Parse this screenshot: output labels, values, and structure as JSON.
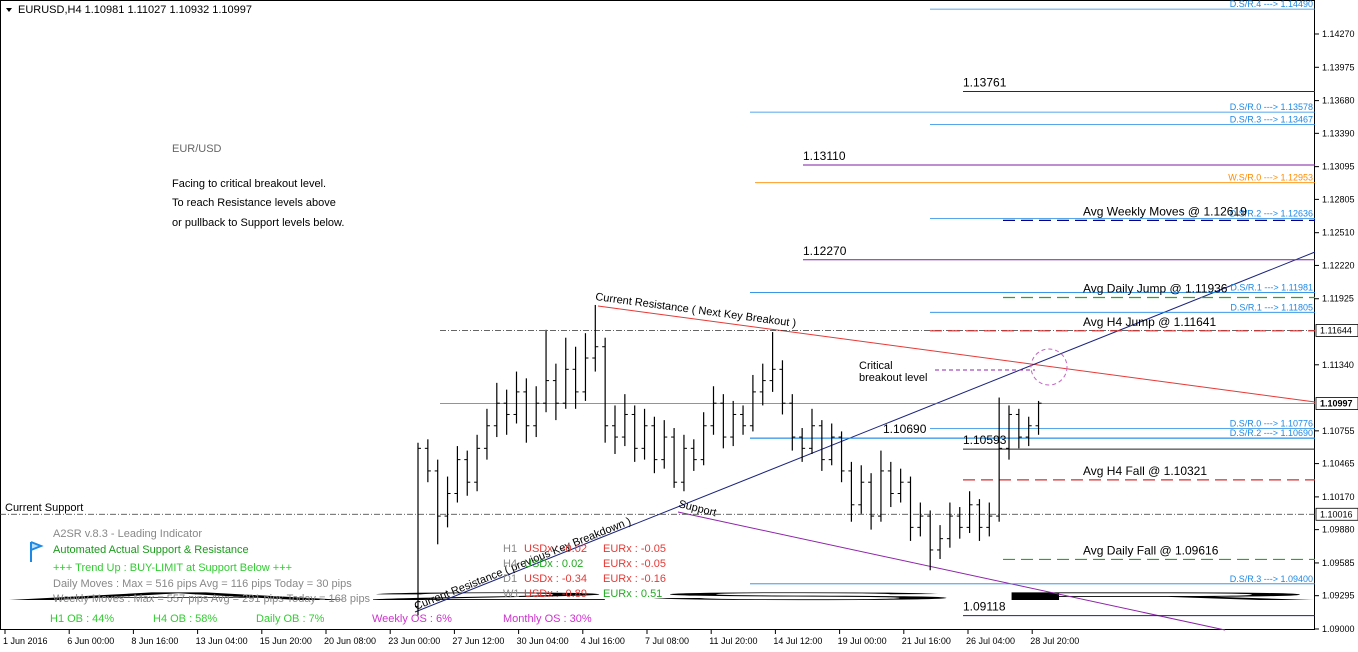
{
  "header": "EURUSD,H4  1.10981 1.11027 1.10932 1.10997",
  "watermark": "A2SR",
  "headline": {
    "symbol": "EUR/USD",
    "title": "Facing to critical breakout level.",
    "lines": [
      "To reach Resistance levels above",
      "or pullback to Support levels below."
    ]
  },
  "price_range": [
    1.08991,
    1.14571
  ],
  "price_ticks": [
    {
      "value": 1.1427,
      "label": "1.14270"
    },
    {
      "value": 1.13975,
      "label": "1.13975"
    },
    {
      "value": 1.1368,
      "label": "1.13680"
    },
    {
      "value": 1.1339,
      "label": "1.13390"
    },
    {
      "value": 1.13095,
      "label": "1.13095"
    },
    {
      "value": 1.12805,
      "label": "1.12805"
    },
    {
      "value": 1.1251,
      "label": "1.12510"
    },
    {
      "value": 1.1222,
      "label": "1.12220"
    },
    {
      "value": 1.11925,
      "label": "1.11925"
    },
    {
      "value": 1.1134,
      "label": "1.11340"
    },
    {
      "value": 1.10755,
      "label": "1.10755"
    },
    {
      "value": 1.10465,
      "label": "1.10465"
    },
    {
      "value": 1.1017,
      "label": "1.10170"
    },
    {
      "value": 1.0988,
      "label": "1.09880"
    },
    {
      "value": 1.09585,
      "label": "1.09585"
    },
    {
      "value": 1.09295,
      "label": "1.09295"
    },
    {
      "value": 1.09,
      "label": "1.09000"
    }
  ],
  "price_boxes": [
    {
      "value": 1.11644,
      "label": "1.11644"
    },
    {
      "value": 1.10997,
      "label": "1.10997"
    },
    {
      "value": 1.10016,
      "label": "1.10016"
    }
  ],
  "time_labels": [
    "1 Jun 2016",
    "6 Jun 00:00",
    "8 Jun 16:00",
    "13 Jun 04:00",
    "15 Jun 20:00",
    "20 Jun 08:00",
    "23 Jun 00:00",
    "27 Jun 12:00",
    "30 Jun 04:00",
    "4 Jul 16:00",
    "7 Jul 08:00",
    "11 Jul 20:00",
    "14 Jul 12:00",
    "19 Jul 00:00",
    "21 Jul 16:00",
    "26 Jul 04:00",
    "28 Jul 20:00"
  ],
  "sr_levels": [
    {
      "label": "D.S/R.4 ---> 1.14490",
      "value": 1.1449,
      "color": "#1e88e5"
    },
    {
      "label": "D.S/R.0 ---> 1.13578",
      "value": 1.13578,
      "color": "#1e88e5"
    },
    {
      "label": "D.S/R.3 ---> 1.13467",
      "value": 1.13467,
      "color": "#1e88e5"
    },
    {
      "label": "W.S/R.0 ---> 1.12953",
      "value": 1.12953,
      "color": "#ff8c00"
    },
    {
      "label": "D.S/R.2 ---> 1.12636",
      "value": 1.12636,
      "color": "#1e88e5"
    },
    {
      "label": "D.S/R.1 ---> 1.11981",
      "value": 1.11981,
      "color": "#1e88e5"
    },
    {
      "label": "D.S/R.1 ---> 1.11805",
      "value": 1.11805,
      "color": "#1e88e5"
    },
    {
      "label": "D.S/R.0 ---> 1.10776",
      "value": 1.10776,
      "color": "#1e88e5"
    },
    {
      "label": "D.S/R.2 ---> 1.10690",
      "value": 1.1069,
      "color": "#1e88e5"
    },
    {
      "label": "D.S/R.3 ---> 1.09400",
      "value": 1.094,
      "color": "#1e88e5"
    }
  ],
  "key_levels": [
    {
      "label": "1.13761",
      "value": 1.13761,
      "color": "#1a237e"
    },
    {
      "label": "1.13110",
      "value": 1.1311,
      "color": "#7b1fa2"
    },
    {
      "label": "1.12270",
      "value": 1.1227,
      "color": "#7b1fa2"
    },
    {
      "label": "1.10690",
      "value": 1.1069,
      "color": "#1e88e5"
    },
    {
      "label": "1.10593",
      "value": 1.10593,
      "color": "#222222"
    },
    {
      "label": "1.09118",
      "value": 1.09118,
      "color": "#1a237e"
    }
  ],
  "avg_levels": [
    {
      "label": "Avg Weekly Moves @ 1.12619",
      "value": 1.12619,
      "color": "#00008b"
    },
    {
      "label": "Avg Daily Jump @ 1.11936",
      "value": 1.11936,
      "color": "#22aa22"
    },
    {
      "label": "Avg H4 Jump @ 1.11641",
      "value": 1.11641,
      "color": "#d32f2f"
    },
    {
      "label": "Avg H4 Fall @ 1.10321",
      "value": 1.10321,
      "color": "#d32f2f"
    },
    {
      "label": "Avg Daily Fall @ 1.09616",
      "value": 1.09616,
      "color": "#22aa22"
    }
  ],
  "annotations": {
    "resistance": "Current Resistance ( Next Key Breakout )",
    "critical": [
      "Critical",
      "breakout level"
    ],
    "prev_resistance": "Current Resistance ( previous Key Breakdown )",
    "support": "Support",
    "current_support": "Current Support"
  },
  "panel": {
    "version": "A2SR v.8.3 - Leading Indicator",
    "title": "Automated Actual Support & Resistance",
    "trend": "+++  Trend Up : BUY-LIMIT at Support Below +++",
    "daily": "Daily Moves     : Max = 516 pips Avg = 116 pips Today = 30 pips",
    "weekly": "Weekly Moves : Max = 557 pips Avg = 291 pips Today = 168 pips",
    "status": [
      "H1 OB : 44%",
      "H4 OB : 58%",
      "Daily OB : 7%",
      "Weekly OS : 6%",
      "Monthly OS : 30%"
    ],
    "strength": [
      {
        "tf": "H1",
        "usd": "USDx : -0.02",
        "eur": "EURx : -0.05"
      },
      {
        "tf": "H4",
        "usd": "USDx : 0.02",
        "eur": "EURx : -0.05"
      },
      {
        "tf": "D1",
        "usd": "USDx : -0.34",
        "eur": "EURx : -0.16"
      },
      {
        "tf": "W1",
        "usd": "USDx : -0.89",
        "eur": "EURx : 0.51"
      }
    ]
  },
  "bars": [
    [
      1.092,
      1.1065,
      1.0912,
      1.106
    ],
    [
      1.106,
      1.1068,
      1.103,
      1.104
    ],
    [
      1.104,
      1.105,
      1.0975,
      1.1
    ],
    [
      1.1,
      1.1035,
      1.099,
      1.102
    ],
    [
      1.102,
      1.1062,
      1.1012,
      1.105
    ],
    [
      1.105,
      1.1058,
      1.1018,
      1.103
    ],
    [
      1.103,
      1.1072,
      1.1022,
      1.106
    ],
    [
      1.106,
      1.1095,
      1.105,
      1.108
    ],
    [
      1.108,
      1.1118,
      1.107,
      1.11
    ],
    [
      1.11,
      1.1112,
      1.1072,
      1.109
    ],
    [
      1.109,
      1.1128,
      1.1082,
      1.111
    ],
    [
      1.111,
      1.1122,
      1.1065,
      1.108
    ],
    [
      1.108,
      1.1115,
      1.107,
      1.11
    ],
    [
      1.11,
      1.1165,
      1.1092,
      1.112
    ],
    [
      1.112,
      1.1135,
      1.1085,
      1.11
    ],
    [
      1.11,
      1.1158,
      1.1095,
      1.113
    ],
    [
      1.113,
      1.115,
      1.1095,
      1.111
    ],
    [
      1.111,
      1.1162,
      1.1102,
      1.114
    ],
    [
      1.114,
      1.1187,
      1.1128,
      1.115
    ],
    [
      1.115,
      1.1158,
      1.1065,
      1.108
    ],
    [
      1.108,
      1.1098,
      1.1055,
      1.107
    ],
    [
      1.107,
      1.1108,
      1.1062,
      1.109
    ],
    [
      1.109,
      1.1098,
      1.1048,
      1.106
    ],
    [
      1.106,
      1.1095,
      1.105,
      1.108
    ],
    [
      1.108,
      1.1088,
      1.1038,
      1.105
    ],
    [
      1.105,
      1.1085,
      1.1042,
      1.107
    ],
    [
      1.107,
      1.1078,
      1.1025,
      1.103
    ],
    [
      1.103,
      1.1072,
      1.1022,
      1.106
    ],
    [
      1.106,
      1.1068,
      1.104,
      1.105
    ],
    [
      1.105,
      1.1092,
      1.1045,
      1.108
    ],
    [
      1.108,
      1.1115,
      1.1072,
      1.11
    ],
    [
      1.11,
      1.1108,
      1.106,
      1.107
    ],
    [
      1.107,
      1.1102,
      1.1062,
      1.109
    ],
    [
      1.109,
      1.1098,
      1.1072,
      1.108
    ],
    [
      1.108,
      1.1125,
      1.1075,
      1.111
    ],
    [
      1.111,
      1.1135,
      1.1098,
      1.112
    ],
    [
      1.112,
      1.1163,
      1.111,
      1.113
    ],
    [
      1.113,
      1.1138,
      1.109,
      1.11
    ],
    [
      1.11,
      1.1108,
      1.1058,
      1.107
    ],
    [
      1.107,
      1.1078,
      1.1048,
      1.106
    ],
    [
      1.106,
      1.1095,
      1.1055,
      1.108
    ],
    [
      1.108,
      1.1085,
      1.104,
      1.105
    ],
    [
      1.105,
      1.1082,
      1.1045,
      1.107
    ],
    [
      1.107,
      1.1075,
      1.103,
      1.104
    ],
    [
      1.104,
      1.1048,
      1.0995,
      1.101
    ],
    [
      1.101,
      1.1045,
      1.1002,
      1.103
    ],
    [
      1.103,
      1.1038,
      1.0988,
      1.1
    ],
    [
      1.1,
      1.1058,
      1.0995,
      1.104
    ],
    [
      1.104,
      1.1048,
      1.1008,
      1.102
    ],
    [
      1.102,
      1.1042,
      1.1012,
      1.103
    ],
    [
      1.103,
      1.1035,
      1.0978,
      1.099
    ],
    [
      1.099,
      1.1012,
      1.0982,
      1.1
    ],
    [
      1.1,
      1.1005,
      1.0952,
      1.097
    ],
    [
      1.097,
      1.0992,
      1.0962,
      1.098
    ],
    [
      1.098,
      1.1012,
      1.0972,
      1.1
    ],
    [
      1.1,
      1.1008,
      1.098,
      1.099
    ],
    [
      1.099,
      1.1022,
      1.0985,
      1.101
    ],
    [
      1.101,
      1.1015,
      1.0978,
      1.099
    ],
    [
      1.099,
      1.1012,
      1.0982,
      1.1
    ],
    [
      1.1,
      1.1105,
      1.0995,
      1.106
    ],
    [
      1.106,
      1.1098,
      1.105,
      1.109
    ],
    [
      1.109,
      1.1095,
      1.106,
      1.107
    ],
    [
      1.107,
      1.1088,
      1.1062,
      1.108
    ],
    [
      1.108,
      1.1102,
      1.1072,
      1.11
    ]
  ]
}
